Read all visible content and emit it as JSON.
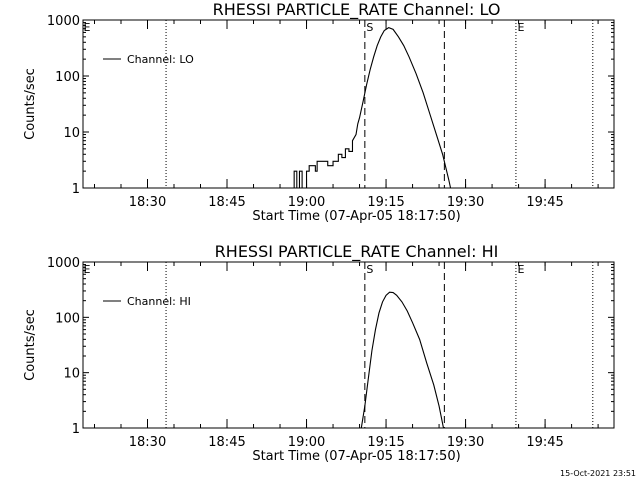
{
  "footer": {
    "timestamp": "15-Oct-2021 23:51"
  },
  "chart_data": [
    {
      "type": "line",
      "title": "RHESSI PARTICLE_RATE Channel: LO",
      "xlabel": "Start Time (07-Apr-05 18:17:50)",
      "ylabel": "Counts/sec",
      "y_scale": "log",
      "ylim": [
        1,
        1000
      ],
      "y_ticks": [
        1,
        10,
        100,
        1000
      ],
      "y_tick_labels": [
        "1",
        "10",
        "100",
        "1000"
      ],
      "x_unit": "time (HH:MM, 07-Apr-05)",
      "xlim": [
        "18:17:50",
        "19:58:00"
      ],
      "x_ticks": [
        "18:30",
        "18:45",
        "19:00",
        "19:15",
        "19:30",
        "19:45"
      ],
      "legend": {
        "position": "top-left",
        "entries": [
          "Channel: LO"
        ]
      },
      "markers": [
        {
          "time": "19:11:00",
          "style": "dashed",
          "label": "S"
        },
        {
          "time": "19:26:00",
          "style": "dashed",
          "label": ""
        },
        {
          "time": "18:33:30",
          "style": "dotted",
          "label": ""
        },
        {
          "time": "19:39:30",
          "style": "dotted",
          "label": "E"
        },
        {
          "time": "19:54:00",
          "style": "dotted",
          "label": ""
        }
      ],
      "edge_labels": [
        "E"
      ],
      "series": [
        {
          "name": "Channel: LO",
          "points": [
            [
              "18:57:40",
              1
            ],
            [
              "18:57:40",
              2
            ],
            [
              "18:58:10",
              2
            ],
            [
              "18:58:10",
              1
            ],
            [
              "18:58:40",
              1
            ],
            [
              "18:58:40",
              2
            ],
            [
              "18:59:10",
              2
            ],
            [
              "18:59:10",
              1
            ],
            [
              "19:00:00",
              1
            ],
            [
              "19:00:00",
              2
            ],
            [
              "19:00:30",
              2
            ],
            [
              "19:00:30",
              2.5
            ],
            [
              "19:01:40",
              2.5
            ],
            [
              "19:01:40",
              2
            ],
            [
              "19:02:00",
              2
            ],
            [
              "19:02:00",
              3
            ],
            [
              "19:04:00",
              3
            ],
            [
              "19:04:00",
              2.5
            ],
            [
              "19:05:00",
              2.5
            ],
            [
              "19:05:00",
              3
            ],
            [
              "19:06:00",
              3
            ],
            [
              "19:06:00",
              4
            ],
            [
              "19:06:40",
              4
            ],
            [
              "19:06:40",
              3.5
            ],
            [
              "19:07:20",
              3.5
            ],
            [
              "19:07:20",
              5
            ],
            [
              "19:08:00",
              5
            ],
            [
              "19:08:00",
              4.5
            ],
            [
              "19:08:40",
              4.5
            ],
            [
              "19:08:40",
              7
            ],
            [
              "19:09:20",
              9
            ],
            [
              "19:09:40",
              14
            ],
            [
              "19:10:00",
              18
            ],
            [
              "19:10:40",
              35
            ],
            [
              "19:11:20",
              70
            ],
            [
              "19:12:00",
              130
            ],
            [
              "19:12:40",
              220
            ],
            [
              "19:13:20",
              350
            ],
            [
              "19:14:00",
              500
            ],
            [
              "19:14:40",
              650
            ],
            [
              "19:15:30",
              730
            ],
            [
              "19:16:20",
              680
            ],
            [
              "19:17:20",
              500
            ],
            [
              "19:18:20",
              350
            ],
            [
              "19:19:20",
              220
            ],
            [
              "19:20:40",
              110
            ],
            [
              "19:22:00",
              50
            ],
            [
              "19:23:20",
              20
            ],
            [
              "19:24:40",
              8
            ],
            [
              "19:25:40",
              4
            ],
            [
              "19:26:20",
              2.2
            ],
            [
              "19:26:50",
              1.4
            ],
            [
              "19:27:10",
              1
            ]
          ]
        }
      ]
    },
    {
      "type": "line",
      "title": "RHESSI PARTICLE_RATE Channel: HI",
      "xlabel": "Start Time (07-Apr-05 18:17:50)",
      "ylabel": "Counts/sec",
      "y_scale": "log",
      "ylim": [
        1,
        1000
      ],
      "y_ticks": [
        1,
        10,
        100,
        1000
      ],
      "y_tick_labels": [
        "1",
        "10",
        "100",
        "1000"
      ],
      "x_unit": "time (HH:MM, 07-Apr-05)",
      "xlim": [
        "18:17:50",
        "19:58:00"
      ],
      "x_ticks": [
        "18:30",
        "18:45",
        "19:00",
        "19:15",
        "19:30",
        "19:45"
      ],
      "legend": {
        "position": "top-left",
        "entries": [
          "Channel: HI"
        ]
      },
      "markers": [
        {
          "time": "19:11:00",
          "style": "dashed",
          "label": "S"
        },
        {
          "time": "19:26:00",
          "style": "dashed",
          "label": ""
        },
        {
          "time": "18:33:30",
          "style": "dotted",
          "label": ""
        },
        {
          "time": "19:39:30",
          "style": "dotted",
          "label": "E"
        },
        {
          "time": "19:54:00",
          "style": "dotted",
          "label": ""
        }
      ],
      "edge_labels": [
        "E"
      ],
      "series": [
        {
          "name": "Channel: HI",
          "points": [
            [
              "19:10:20",
              1
            ],
            [
              "19:11:00",
              2.5
            ],
            [
              "19:11:40",
              8
            ],
            [
              "19:12:20",
              25
            ],
            [
              "19:13:00",
              60
            ],
            [
              "19:13:40",
              120
            ],
            [
              "19:14:20",
              190
            ],
            [
              "19:15:00",
              250
            ],
            [
              "19:15:40",
              285
            ],
            [
              "19:16:20",
              280
            ],
            [
              "19:17:00",
              250
            ],
            [
              "19:18:00",
              190
            ],
            [
              "19:19:00",
              130
            ],
            [
              "19:20:00",
              80
            ],
            [
              "19:21:20",
              40
            ],
            [
              "19:22:40",
              15
            ],
            [
              "19:24:00",
              6
            ],
            [
              "19:25:00",
              2.5
            ],
            [
              "19:25:50",
              1
            ]
          ]
        }
      ]
    }
  ]
}
